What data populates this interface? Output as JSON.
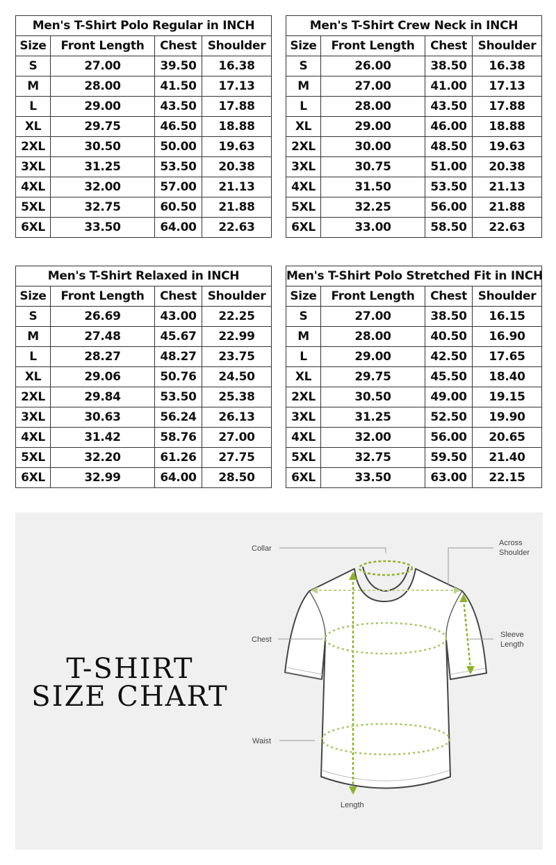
{
  "tables": [
    {
      "title": "Men's T-Shirt Polo Regular in INCH",
      "headers": [
        "Size",
        "Front Length",
        "Chest",
        "Shoulder"
      ],
      "rows": [
        [
          "S",
          "27.00",
          "39.50",
          "16.38"
        ],
        [
          "M",
          "28.00",
          "41.50",
          "17.13"
        ],
        [
          "L",
          "29.00",
          "43.50",
          "17.88"
        ],
        [
          "XL",
          "29.75",
          "46.50",
          "18.88"
        ],
        [
          "2XL",
          "30.50",
          "50.00",
          "19.63"
        ],
        [
          "3XL",
          "31.25",
          "53.50",
          "20.38"
        ],
        [
          "4XL",
          "32.00",
          "57.00",
          "21.13"
        ],
        [
          "5XL",
          "32.75",
          "60.50",
          "21.88"
        ],
        [
          "6XL",
          "33.50",
          "64.00",
          "22.63"
        ]
      ]
    },
    {
      "title": "Men's T-Shirt Crew Neck in INCH",
      "headers": [
        "Size",
        "Front Length",
        "Chest",
        "Shoulder"
      ],
      "rows": [
        [
          "S",
          "26.00",
          "38.50",
          "16.38"
        ],
        [
          "M",
          "27.00",
          "41.00",
          "17.13"
        ],
        [
          "L",
          "28.00",
          "43.50",
          "17.88"
        ],
        [
          "XL",
          "29.00",
          "46.00",
          "18.88"
        ],
        [
          "2XL",
          "30.00",
          "48.50",
          "19.63"
        ],
        [
          "3XL",
          "30.75",
          "51.00",
          "20.38"
        ],
        [
          "4XL",
          "31.50",
          "53.50",
          "21.13"
        ],
        [
          "5XL",
          "32.25",
          "56.00",
          "21.88"
        ],
        [
          "6XL",
          "33.00",
          "58.50",
          "22.63"
        ]
      ]
    },
    {
      "title": "Men's T-Shirt Relaxed in INCH",
      "headers": [
        "Size",
        "Front Length",
        "Chest",
        "Shoulder"
      ],
      "rows": [
        [
          "S",
          "26.69",
          "43.00",
          "22.25"
        ],
        [
          "M",
          "27.48",
          "45.67",
          "22.99"
        ],
        [
          "L",
          "28.27",
          "48.27",
          "23.75"
        ],
        [
          "XL",
          "29.06",
          "50.76",
          "24.50"
        ],
        [
          "2XL",
          "29.84",
          "53.50",
          "25.38"
        ],
        [
          "3XL",
          "30.63",
          "56.24",
          "26.13"
        ],
        [
          "4XL",
          "31.42",
          "58.76",
          "27.00"
        ],
        [
          "5XL",
          "32.20",
          "61.26",
          "27.75"
        ],
        [
          "6XL",
          "32.99",
          "64.00",
          "28.50"
        ]
      ]
    },
    {
      "title": "Men's T-Shirt Polo Stretched Fit in INCH",
      "headers": [
        "Size",
        "Front Length",
        "Chest",
        "Shoulder"
      ],
      "rows": [
        [
          "S",
          "27.00",
          "38.50",
          "16.15"
        ],
        [
          "M",
          "28.00",
          "40.50",
          "16.90"
        ],
        [
          "L",
          "29.00",
          "42.50",
          "17.65"
        ],
        [
          "XL",
          "29.75",
          "45.50",
          "18.40"
        ],
        [
          "2XL",
          "30.50",
          "49.00",
          "19.15"
        ],
        [
          "3XL",
          "31.25",
          "52.50",
          "19.90"
        ],
        [
          "4XL",
          "32.00",
          "56.00",
          "20.65"
        ],
        [
          "5XL",
          "32.75",
          "59.50",
          "21.40"
        ],
        [
          "6XL",
          "33.50",
          "63.00",
          "22.15"
        ]
      ]
    }
  ],
  "diagram": {
    "heading_line1": "T-SHIRT",
    "heading_line2": "SIZE CHART",
    "labels": {
      "collar": "Collar",
      "across1": "Across",
      "across2": "Shoulder",
      "chest": "Chest",
      "sleeve1": "Sleeve",
      "sleeve2": "Length",
      "waist": "Waist",
      "length": "Length"
    },
    "measure_color": "#8db32a",
    "panel_color": "#f0f0f0"
  }
}
